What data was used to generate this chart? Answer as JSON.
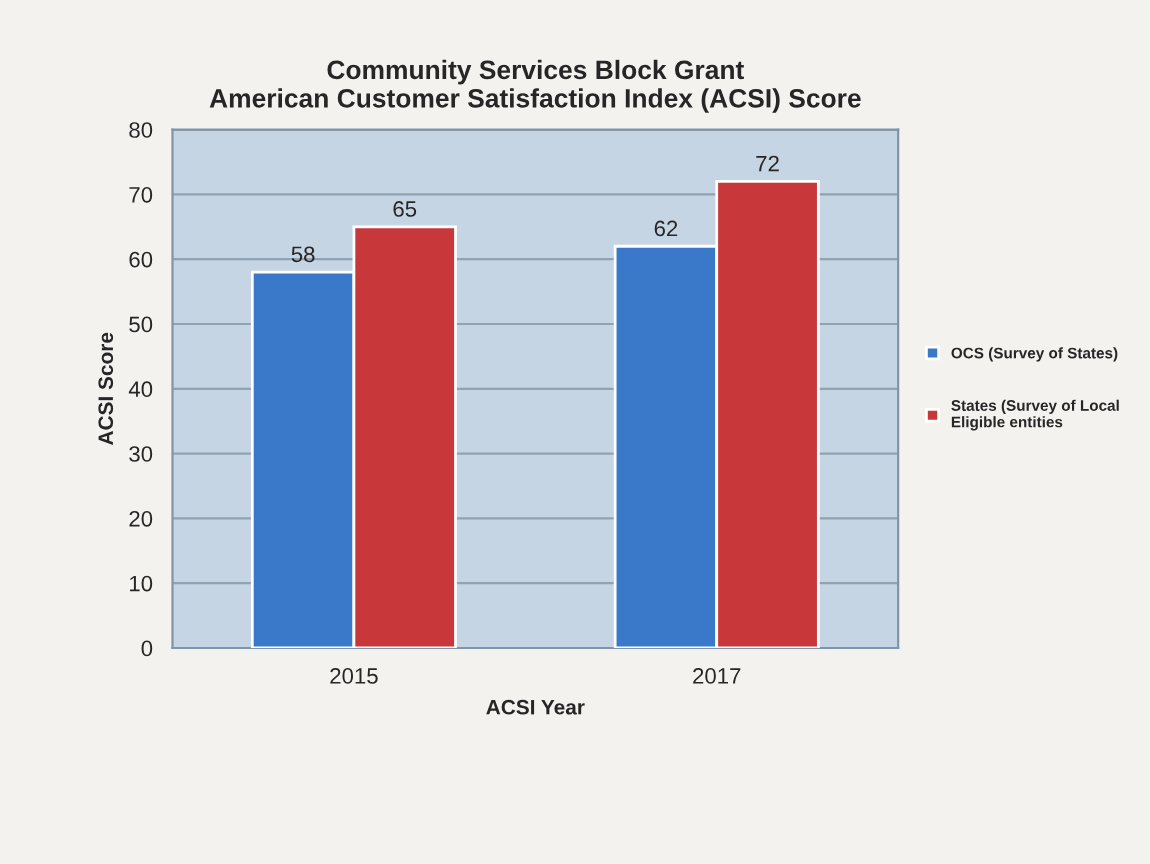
{
  "chart_data": {
    "type": "bar",
    "title": "Community Services Block Grant\nAmerican Customer Satisfaction Index (ACSI) Score",
    "xlabel": "ACSI Year",
    "ylabel": "ACSI Score",
    "categories": [
      "2015",
      "2017"
    ],
    "series": [
      {
        "name": "OCS (Survey of States)",
        "color": "#3a78c9",
        "values": [
          58,
          62
        ]
      },
      {
        "name": "States (Survey of Local Eligible entities",
        "color": "#c8373a",
        "values": [
          65,
          72
        ]
      }
    ],
    "ylim": [
      0,
      80
    ],
    "yticks": [
      0,
      10,
      20,
      30,
      40,
      50,
      60,
      70,
      80
    ],
    "grid": "y",
    "legend": "right",
    "data_labels": true
  }
}
